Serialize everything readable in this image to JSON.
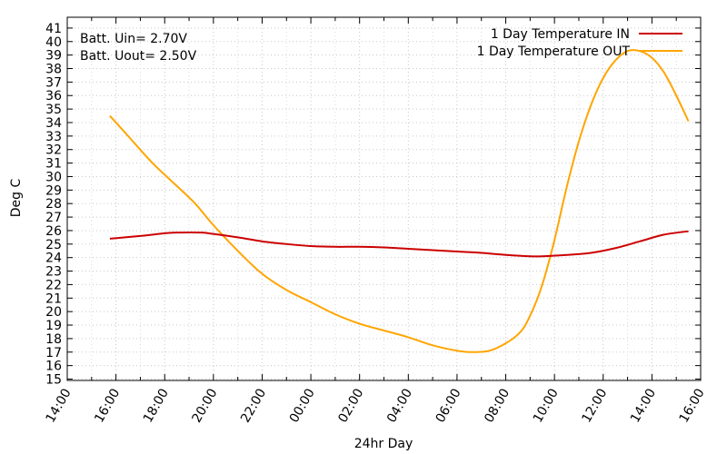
{
  "chart_data": {
    "type": "line",
    "xlabel": "24hr Day",
    "ylabel": "Deg C",
    "xlim": [
      "14:00",
      "16:00 (+1 day)"
    ],
    "ylim": [
      14.9,
      41.8
    ],
    "x_tick_labels": [
      "14:00",
      "16:00",
      "18:00",
      "20:00",
      "22:00",
      "00:00",
      "02:00",
      "04:00",
      "06:00",
      "08:00",
      "10:00",
      "12:00",
      "14:00",
      "16:00"
    ],
    "y_tick_labels": [
      "15",
      "16",
      "17",
      "18",
      "19",
      "20",
      "21",
      "22",
      "23",
      "24",
      "25",
      "26",
      "27",
      "28",
      "29",
      "30",
      "31",
      "32",
      "33",
      "34",
      "35",
      "36",
      "37",
      "38",
      "39",
      "40",
      "41"
    ],
    "grid": true,
    "legend_position": "top-right",
    "annotations": [
      "Batt. Uin= 2.70V",
      "Batt. Uout= 2.50V"
    ],
    "series": [
      {
        "name": "1 Day Temperature IN",
        "color": "#cc0000",
        "x": [
          "15:45",
          "17:00",
          "18:00",
          "18:30",
          "19:30",
          "20:00",
          "21:00",
          "22:00",
          "23:00",
          "00:00",
          "01:00",
          "02:00",
          "03:00",
          "04:00",
          "05:00",
          "06:00",
          "07:00",
          "08:00",
          "09:00",
          "09:30",
          "10:30",
          "11:30",
          "12:30",
          "13:30",
          "14:30",
          "15:30"
        ],
        "y": [
          25.4,
          25.6,
          25.8,
          25.85,
          25.85,
          25.75,
          25.5,
          25.2,
          25.0,
          24.85,
          24.8,
          24.8,
          24.75,
          24.65,
          24.55,
          24.45,
          24.35,
          24.2,
          24.1,
          24.1,
          24.2,
          24.35,
          24.7,
          25.2,
          25.7,
          25.95
        ]
      },
      {
        "name": "1 Day Temperature OUT",
        "color": "#ffa500",
        "x": [
          "15:45",
          "16:30",
          "17:30",
          "18:30",
          "19:15",
          "20:00",
          "21:00",
          "22:00",
          "23:00",
          "00:00",
          "01:00",
          "02:00",
          "03:00",
          "04:00",
          "05:00",
          "06:00",
          "06:40",
          "07:30",
          "08:30",
          "09:00",
          "09:30",
          "10:00",
          "10:30",
          "11:00",
          "11:30",
          "12:00",
          "12:30",
          "13:00",
          "13:30",
          "14:00",
          "14:30",
          "15:00",
          "15:30"
        ],
        "y": [
          34.5,
          33.0,
          31.0,
          29.3,
          28.0,
          26.4,
          24.5,
          22.8,
          21.6,
          20.7,
          19.8,
          19.1,
          18.6,
          18.1,
          17.5,
          17.1,
          17.0,
          17.2,
          18.3,
          19.7,
          22.0,
          25.3,
          29.2,
          32.6,
          35.3,
          37.3,
          38.6,
          39.3,
          39.3,
          38.8,
          37.7,
          36.0,
          34.1
        ]
      }
    ]
  }
}
